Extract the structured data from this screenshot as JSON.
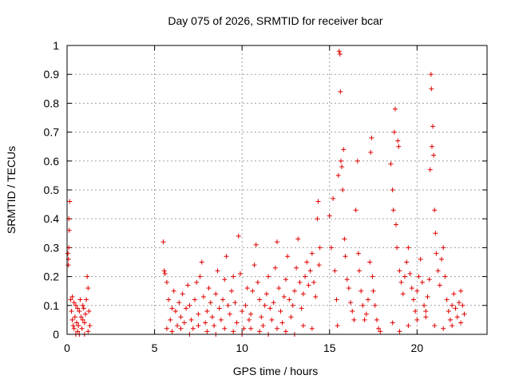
{
  "chart_data": {
    "type": "scatter",
    "title": "Day 075 of 2026, SRMTID for receiver bcar",
    "xlabel": "GPS time / hours",
    "ylabel": "SRMTID / TECUs",
    "xlim": [
      0,
      24
    ],
    "ylim": [
      0,
      1
    ],
    "xticks": [
      0,
      5,
      10,
      15,
      20
    ],
    "xtick_labels": [
      "0",
      "5",
      "10",
      "15",
      "20"
    ],
    "yticks": [
      0,
      0.1,
      0.2,
      0.3,
      0.4,
      0.5,
      0.6,
      0.7,
      0.8,
      0.9,
      1
    ],
    "ytick_labels": [
      "0",
      "0.1",
      "0.2",
      "0.3",
      "0.4",
      "0.5",
      "0.6",
      "0.7",
      "0.8",
      "0.9",
      "1"
    ],
    "grid": true,
    "marker": "+",
    "marker_color": "#e00000",
    "series": [
      {
        "name": "SRMTID",
        "points": [
          [
            0.05,
            0.28
          ],
          [
            0.08,
            0.26
          ],
          [
            0.1,
            0.4
          ],
          [
            0.12,
            0.36
          ],
          [
            0.15,
            0.46
          ],
          [
            0.1,
            0.3
          ],
          [
            0.07,
            0.24
          ],
          [
            0.2,
            0.12
          ],
          [
            0.25,
            0.08
          ],
          [
            0.3,
            0.05
          ],
          [
            0.35,
            0.03
          ],
          [
            0.4,
            0.02
          ],
          [
            0.45,
            0.06
          ],
          [
            0.5,
            0.1
          ],
          [
            0.55,
            0.04
          ],
          [
            0.6,
            0.01
          ],
          [
            0.65,
            0.03
          ],
          [
            0.7,
            0.08
          ],
          [
            0.75,
            0.12
          ],
          [
            0.8,
            0.06
          ],
          [
            0.85,
            0.02
          ],
          [
            0.9,
            0.05
          ],
          [
            0.95,
            0.09
          ],
          [
            1.0,
            0.04
          ],
          [
            1.05,
            0.07
          ],
          [
            1.1,
            0.12
          ],
          [
            1.15,
            0.2
          ],
          [
            1.2,
            0.16
          ],
          [
            1.25,
            0.08
          ],
          [
            1.3,
            0.03
          ],
          [
            0.3,
            0.13
          ],
          [
            0.5,
            0.0
          ],
          [
            0.7,
            0.0
          ],
          [
            1.0,
            0.0
          ],
          [
            1.2,
            0.01
          ],
          [
            0.9,
            0.1
          ],
          [
            0.6,
            0.09
          ],
          [
            0.4,
            0.11
          ],
          [
            5.5,
            0.32
          ],
          [
            5.55,
            0.22
          ],
          [
            5.6,
            0.21
          ],
          [
            5.7,
            0.18
          ],
          [
            5.8,
            0.12
          ],
          [
            5.9,
            0.05
          ],
          [
            6.0,
            0.09
          ],
          [
            6.1,
            0.15
          ],
          [
            6.2,
            0.08
          ],
          [
            6.3,
            0.03
          ],
          [
            6.4,
            0.11
          ],
          [
            6.5,
            0.06
          ],
          [
            6.6,
            0.14
          ],
          [
            6.7,
            0.04
          ],
          [
            6.8,
            0.09
          ],
          [
            6.9,
            0.17
          ],
          [
            7.0,
            0.1
          ],
          [
            7.1,
            0.05
          ],
          [
            7.2,
            0.02
          ],
          [
            7.3,
            0.12
          ],
          [
            7.4,
            0.18
          ],
          [
            7.5,
            0.07
          ],
          [
            7.6,
            0.2
          ],
          [
            7.7,
            0.25
          ],
          [
            7.8,
            0.13
          ],
          [
            7.9,
            0.04
          ],
          [
            8.0,
            0.08
          ],
          [
            8.1,
            0.16
          ],
          [
            8.2,
            0.11
          ],
          [
            8.3,
            0.06
          ],
          [
            8.4,
            0.03
          ],
          [
            8.5,
            0.14
          ],
          [
            8.6,
            0.22
          ],
          [
            8.7,
            0.09
          ],
          [
            8.8,
            0.05
          ],
          [
            8.9,
            0.12
          ],
          [
            9.0,
            0.19
          ],
          [
            9.1,
            0.27
          ],
          [
            9.2,
            0.1
          ],
          [
            9.3,
            0.07
          ],
          [
            9.4,
            0.15
          ],
          [
            9.5,
            0.2
          ],
          [
            9.6,
            0.11
          ],
          [
            9.7,
            0.04
          ],
          [
            9.8,
            0.34
          ],
          [
            9.9,
            0.21
          ],
          [
            10.0,
            0.08
          ],
          [
            10.1,
            0.02
          ],
          [
            10.2,
            0.1
          ],
          [
            10.3,
            0.16
          ],
          [
            10.4,
            0.05
          ],
          [
            10.5,
            0.07
          ],
          [
            10.6,
            0.15
          ],
          [
            10.7,
            0.24
          ],
          [
            10.8,
            0.31
          ],
          [
            10.9,
            0.18
          ],
          [
            11.0,
            0.12
          ],
          [
            11.1,
            0.06
          ],
          [
            11.2,
            0.03
          ],
          [
            11.3,
            0.1
          ],
          [
            11.4,
            0.14
          ],
          [
            11.5,
            0.2
          ],
          [
            11.6,
            0.09
          ],
          [
            11.7,
            0.05
          ],
          [
            11.8,
            0.11
          ],
          [
            11.9,
            0.23
          ],
          [
            12.0,
            0.32
          ],
          [
            12.1,
            0.16
          ],
          [
            12.2,
            0.08
          ],
          [
            12.3,
            0.04
          ],
          [
            12.4,
            0.13
          ],
          [
            12.5,
            0.19
          ],
          [
            12.6,
            0.27
          ],
          [
            12.7,
            0.12
          ],
          [
            12.8,
            0.06
          ],
          [
            12.9,
            0.1
          ],
          [
            13.0,
            0.15
          ],
          [
            13.1,
            0.23
          ],
          [
            13.2,
            0.33
          ],
          [
            13.3,
            0.18
          ],
          [
            13.4,
            0.09
          ],
          [
            13.5,
            0.14
          ],
          [
            13.6,
            0.2
          ],
          [
            13.7,
            0.25
          ],
          [
            13.8,
            0.17
          ],
          [
            13.9,
            0.22
          ],
          [
            14.0,
            0.28
          ],
          [
            14.1,
            0.18
          ],
          [
            14.2,
            0.13
          ],
          [
            14.3,
            0.4
          ],
          [
            14.35,
            0.46
          ],
          [
            14.4,
            0.24
          ],
          [
            14.45,
            0.3
          ],
          [
            5.7,
            0.02
          ],
          [
            6.0,
            0.01
          ],
          [
            6.5,
            0.02
          ],
          [
            7.0,
            0.0
          ],
          [
            7.5,
            0.03
          ],
          [
            8.0,
            0.01
          ],
          [
            8.5,
            0.0
          ],
          [
            9.0,
            0.02
          ],
          [
            9.5,
            0.01
          ],
          [
            10.0,
            0.0
          ],
          [
            10.5,
            0.02
          ],
          [
            11.0,
            0.01
          ],
          [
            11.5,
            0.0
          ],
          [
            12.0,
            0.02
          ],
          [
            12.5,
            0.01
          ],
          [
            13.0,
            0.0
          ],
          [
            13.5,
            0.03
          ],
          [
            14.0,
            0.02
          ],
          [
            15.0,
            0.41
          ],
          [
            15.1,
            0.3
          ],
          [
            15.2,
            0.47
          ],
          [
            15.3,
            0.22
          ],
          [
            15.4,
            0.12
          ],
          [
            15.45,
            0.03
          ],
          [
            15.5,
            0.55
          ],
          [
            15.55,
            0.98
          ],
          [
            15.6,
            0.97
          ],
          [
            15.62,
            0.84
          ],
          [
            15.65,
            0.6
          ],
          [
            15.7,
            0.58
          ],
          [
            15.75,
            0.5
          ],
          [
            15.8,
            0.64
          ],
          [
            15.85,
            0.33
          ],
          [
            15.9,
            0.27
          ],
          [
            16.0,
            0.19
          ],
          [
            16.1,
            0.16
          ],
          [
            16.2,
            0.11
          ],
          [
            16.3,
            0.08
          ],
          [
            16.4,
            0.05
          ],
          [
            16.5,
            0.43
          ],
          [
            16.6,
            0.6
          ],
          [
            16.65,
            0.28
          ],
          [
            16.7,
            0.22
          ],
          [
            16.8,
            0.15
          ],
          [
            16.9,
            0.1
          ],
          [
            17.0,
            0.05
          ],
          [
            17.1,
            0.07
          ],
          [
            17.2,
            0.12
          ],
          [
            17.3,
            0.25
          ],
          [
            17.35,
            0.63
          ],
          [
            17.4,
            0.68
          ],
          [
            17.45,
            0.2
          ],
          [
            17.5,
            0.15
          ],
          [
            17.6,
            0.1
          ],
          [
            17.7,
            0.05
          ],
          [
            17.8,
            0.02
          ],
          [
            17.9,
            0.01
          ],
          [
            18.5,
            0.59
          ],
          [
            18.6,
            0.5
          ],
          [
            18.65,
            0.43
          ],
          [
            18.7,
            0.7
          ],
          [
            18.75,
            0.78
          ],
          [
            18.8,
            0.38
          ],
          [
            18.85,
            0.3
          ],
          [
            18.9,
            0.67
          ],
          [
            18.95,
            0.65
          ],
          [
            19.0,
            0.22
          ],
          [
            19.1,
            0.18
          ],
          [
            19.2,
            0.14
          ],
          [
            19.3,
            0.2
          ],
          [
            19.4,
            0.25
          ],
          [
            19.5,
            0.3
          ],
          [
            19.6,
            0.21
          ],
          [
            19.7,
            0.16
          ],
          [
            19.8,
            0.12
          ],
          [
            19.9,
            0.08
          ],
          [
            20.0,
            0.15
          ],
          [
            20.1,
            0.2
          ],
          [
            20.2,
            0.26
          ],
          [
            20.3,
            0.18
          ],
          [
            20.4,
            0.1
          ],
          [
            20.5,
            0.06
          ],
          [
            20.6,
            0.13
          ],
          [
            20.7,
            0.19
          ],
          [
            20.75,
            0.57
          ],
          [
            20.8,
            0.9
          ],
          [
            20.82,
            0.85
          ],
          [
            20.85,
            0.65
          ],
          [
            20.9,
            0.72
          ],
          [
            20.95,
            0.62
          ],
          [
            21.0,
            0.43
          ],
          [
            21.05,
            0.35
          ],
          [
            21.1,
            0.28
          ],
          [
            21.2,
            0.22
          ],
          [
            21.3,
            0.17
          ],
          [
            21.4,
            0.26
          ],
          [
            21.5,
            0.3
          ],
          [
            21.6,
            0.2
          ],
          [
            21.7,
            0.12
          ],
          [
            21.8,
            0.08
          ],
          [
            21.9,
            0.05
          ],
          [
            22.0,
            0.1
          ],
          [
            22.1,
            0.14
          ],
          [
            22.2,
            0.09
          ],
          [
            22.3,
            0.06
          ],
          [
            22.4,
            0.11
          ],
          [
            22.5,
            0.15
          ],
          [
            22.6,
            0.1
          ],
          [
            22.7,
            0.07
          ],
          [
            18.6,
            0.04
          ],
          [
            19.0,
            0.01
          ],
          [
            19.5,
            0.03
          ],
          [
            20.0,
            0.05
          ],
          [
            20.5,
            0.08
          ],
          [
            21.0,
            0.03
          ],
          [
            21.5,
            0.02
          ],
          [
            22.0,
            0.03
          ],
          [
            22.5,
            0.04
          ]
        ]
      }
    ]
  }
}
